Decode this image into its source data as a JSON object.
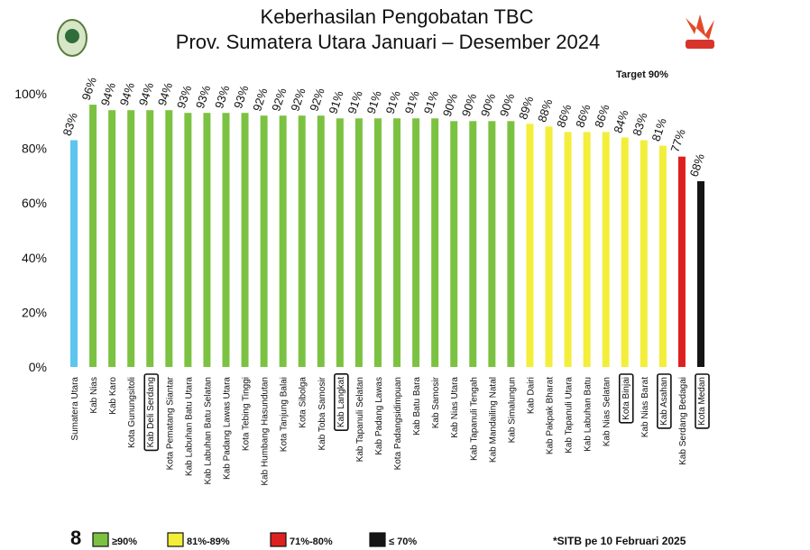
{
  "chart_data": {
    "type": "bar",
    "title": "Keberhasilan Pengobatan TBC",
    "subtitle": "Prov. Sumatera Utara Januari – Desember 2024",
    "annotation": "Target 90%",
    "source": "*SITB pe 10 Februari 2025",
    "page_number": "8",
    "categories": [
      "Sumatera Utara",
      "Kab Nias",
      "Kab Karo",
      "Kota Gunungsitoli",
      "Kab Deli Serdang",
      "Kota Pematang Siantar",
      "Kab Labuhan Batu Utara",
      "Kab Labuhan Batu Selatan",
      "Kab Padang Lawas Utara",
      "Kota Tebing Tinggi",
      "Kab Humbang Hasundutan",
      "Kota Tanjung Balai",
      "Kota Sibolga",
      "Kab Toba Samosir",
      "Kab Langkat",
      "Kab Tapanuli Selatan",
      "Kab Padang Lawas",
      "Kota Padangsidimpuan",
      "Kab Batu Bara",
      "Kab Samosir",
      "Kab Nias Utara",
      "Kab Tapanuli Tengah",
      "Kab Mandailing Natal",
      "Kab Simalungun",
      "Kab Dairi",
      "Kab Pakpak Bharat",
      "Kab Tapanuli Utara",
      "Kab Labuhan Batu",
      "Kab Nias Selatan",
      "Kota Binjai",
      "Kab Nias Barat",
      "Kab Asahan",
      "Kab Serdang Bedagai",
      "Kota Medan"
    ],
    "values": [
      83,
      96,
      94,
      94,
      94,
      94,
      93,
      93,
      93,
      93,
      92,
      92,
      92,
      92,
      91,
      91,
      91,
      91,
      91,
      91,
      90,
      90,
      90,
      90,
      89,
      88,
      86,
      86,
      86,
      84,
      83,
      81,
      77,
      68
    ],
    "value_labels": [
      "83%",
      "96%",
      "94%",
      "94%",
      "94%",
      "94%",
      "93%",
      "93%",
      "93%",
      "93%",
      "92%",
      "92%",
      "92%",
      "92%",
      "91%",
      "91%",
      "91%",
      "91%",
      "91%",
      "91%",
      "90%",
      "90%",
      "90%",
      "90%",
      "89%",
      "88%",
      "86%",
      "86%",
      "86%",
      "84%",
      "83%",
      "81%",
      "77%",
      "68%"
    ],
    "colors": [
      "#5cc6ef",
      "#7cc242",
      "#7cc242",
      "#7cc242",
      "#7cc242",
      "#7cc242",
      "#7cc242",
      "#7cc242",
      "#7cc242",
      "#7cc242",
      "#7cc242",
      "#7cc242",
      "#7cc242",
      "#7cc242",
      "#7cc242",
      "#7cc242",
      "#7cc242",
      "#7cc242",
      "#7cc242",
      "#7cc242",
      "#7cc242",
      "#7cc242",
      "#7cc242",
      "#7cc242",
      "#f3ee3a",
      "#f3ee3a",
      "#f3ee3a",
      "#f3ee3a",
      "#f3ee3a",
      "#f3ee3a",
      "#f3ee3a",
      "#f3ee3a",
      "#de2020",
      "#151515"
    ],
    "highlighted": [
      false,
      false,
      false,
      false,
      true,
      false,
      false,
      false,
      false,
      false,
      false,
      false,
      false,
      false,
      true,
      false,
      false,
      false,
      false,
      false,
      false,
      false,
      false,
      false,
      false,
      false,
      false,
      false,
      false,
      true,
      false,
      true,
      false,
      true
    ],
    "ylim": [
      0,
      100
    ],
    "yticks": [
      {
        "value": 0,
        "label": "0%"
      },
      {
        "value": 20,
        "label": "20%"
      },
      {
        "value": 40,
        "label": "40%"
      },
      {
        "value": 60,
        "label": "60%"
      },
      {
        "value": 80,
        "label": "80%"
      },
      {
        "value": 100,
        "label": "100%"
      }
    ],
    "grid": false,
    "legend": [
      {
        "label": "≥90%",
        "color": "#7cc242"
      },
      {
        "label": "81%-89%",
        "color": "#f3ee3a"
      },
      {
        "label": "71%-80%",
        "color": "#de2020"
      },
      {
        "label": "≤ 70%",
        "color": "#151515"
      }
    ]
  }
}
